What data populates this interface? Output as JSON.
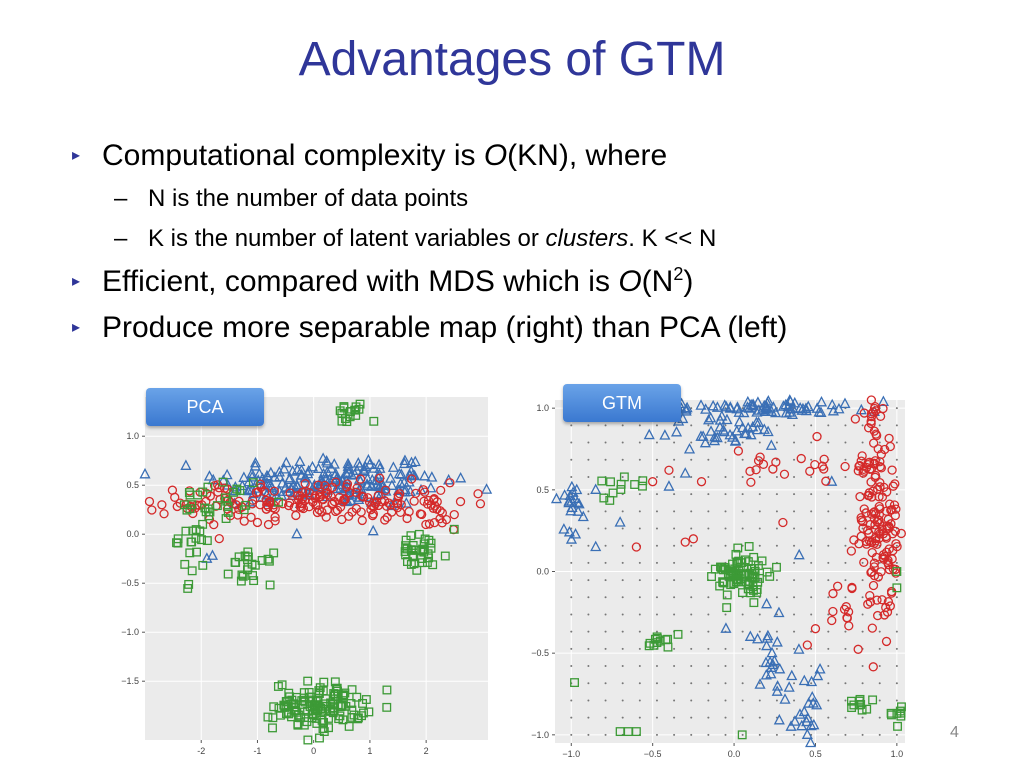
{
  "slide": {
    "title": "Advantages of GTM",
    "page_number": "4",
    "bullets": {
      "b1_pre": "Computational complexity is ",
      "b1_italic": "O",
      "b1_post": "(KN), where",
      "sub1": "N is the number of data points",
      "sub2_pre": "K is the number of latent variables or ",
      "sub2_italic": "clusters",
      "sub2_post": ". K << N",
      "b2_pre": "Efficient, compared with MDS which is ",
      "b2_italic": "O",
      "b2_mid": "(N",
      "b2_sup": "2",
      "b2_post": ")",
      "b3": "Produce more separable map (right) than PCA (left)",
      "arrow_glyph": "▸",
      "dash_glyph": "–"
    }
  },
  "chart_data": [
    {
      "type": "scatter",
      "label": "PCA",
      "xlim": [
        -3,
        3.1
      ],
      "ylim": [
        -2.1,
        1.4
      ],
      "x_ticks": [
        "-2",
        "-1",
        "0",
        "1",
        "2"
      ],
      "x_tick_values": [
        -2,
        -1,
        0,
        1,
        2
      ],
      "y_ticks": [
        "1.0",
        "0.5",
        "0.0",
        "−0.5",
        "−1.0",
        "−1.5"
      ],
      "y_tick_values": [
        1.0,
        0.5,
        0.0,
        -0.5,
        -1.0,
        -1.5
      ],
      "grid": true,
      "series": [
        {
          "marker": "triangle",
          "color": "#3a6fb5",
          "clusters": [
            {
              "cx": 0.3,
              "cy": 0.55,
              "sx": 1.0,
              "sy": 0.13,
              "n": 160
            },
            {
              "cx": 1.6,
              "cy": 0.45,
              "sx": 0.35,
              "sy": 0.1,
              "n": 20
            },
            {
              "cx": -0.8,
              "cy": 0.45,
              "sx": 0.4,
              "sy": 0.1,
              "n": 20
            }
          ],
          "points": [
            [
              -1.9,
              -0.25
            ],
            [
              -1.8,
              -0.22
            ],
            [
              0.8,
              0.35
            ],
            [
              2.4,
              0.55
            ],
            [
              -0.3,
              0.0
            ]
          ]
        },
        {
          "marker": "circle",
          "color": "#d42a2a",
          "clusters": [
            {
              "cx": 0.1,
              "cy": 0.33,
              "sx": 1.2,
              "sy": 0.1,
              "n": 170
            },
            {
              "cx": -2.0,
              "cy": 0.3,
              "sx": 0.35,
              "sy": 0.12,
              "n": 14
            },
            {
              "cx": 2.0,
              "cy": 0.2,
              "sx": 0.4,
              "sy": 0.1,
              "n": 14
            }
          ],
          "points": [
            [
              -2.7,
              0.3
            ],
            [
              2.5,
              0.2
            ],
            [
              -1.0,
              0.12
            ],
            [
              0.5,
              0.15
            ]
          ]
        },
        {
          "marker": "square",
          "color": "#3c9a36",
          "clusters": [
            {
              "cx": 0.65,
              "cy": 1.22,
              "sx": 0.15,
              "sy": 0.06,
              "n": 16
            },
            {
              "cx": -2.1,
              "cy": 0.0,
              "sx": 0.15,
              "sy": 0.22,
              "n": 28
            },
            {
              "cx": -1.1,
              "cy": -0.35,
              "sx": 0.18,
              "sy": 0.08,
              "n": 22
            },
            {
              "cx": 1.9,
              "cy": -0.2,
              "sx": 0.25,
              "sy": 0.1,
              "n": 34
            },
            {
              "cx": 0.1,
              "cy": -1.75,
              "sx": 0.4,
              "sy": 0.12,
              "n": 130
            },
            {
              "cx": -1.5,
              "cy": 0.35,
              "sx": 0.3,
              "sy": 0.12,
              "n": 18
            }
          ],
          "points": [
            [
              -2.3,
              0.3
            ],
            [
              -2.2,
              0.4
            ],
            [
              2.5,
              0.05
            ]
          ]
        }
      ]
    },
    {
      "type": "scatter",
      "label": "GTM",
      "xlim": [
        -1.1,
        1.05
      ],
      "ylim": [
        -1.05,
        1.05
      ],
      "x_ticks": [
        "−1.0",
        "−0.5",
        "0.0",
        "0.5",
        "1.0"
      ],
      "x_tick_values": [
        -1.0,
        -0.5,
        0.0,
        0.5,
        1.0
      ],
      "y_ticks": [
        "1.0",
        "0.5",
        "0.0",
        "−0.5",
        "−1.0"
      ],
      "y_tick_values": [
        1.0,
        0.5,
        0.0,
        -0.5,
        -1.0
      ],
      "grid": true,
      "latent_grid_points": "20x20 dotted latent grid over [-1,1]",
      "series": [
        {
          "marker": "triangle",
          "color": "#3a6fb5",
          "clusters": [
            {
              "cx": 0.15,
              "cy": 1.0,
              "sx": 0.35,
              "sy": 0.02,
              "n": 70
            },
            {
              "cx": -0.05,
              "cy": 0.85,
              "sx": 0.2,
              "sy": 0.05,
              "n": 40
            },
            {
              "cx": -1.0,
              "cy": 0.4,
              "sx": 0.04,
              "sy": 0.1,
              "n": 20
            },
            {
              "cx": 0.25,
              "cy": -0.55,
              "sx": 0.07,
              "sy": 0.15,
              "n": 22
            },
            {
              "cx": 0.45,
              "cy": -0.85,
              "sx": 0.04,
              "sy": 0.12,
              "n": 18
            }
          ],
          "points": [
            [
              -0.85,
              0.5
            ],
            [
              -0.3,
              0.6
            ],
            [
              -0.4,
              0.52
            ],
            [
              0.4,
              0.1
            ],
            [
              0.6,
              0.55
            ],
            [
              0.1,
              -0.4
            ],
            [
              -0.05,
              -0.35
            ],
            [
              0.2,
              -0.2
            ],
            [
              0.35,
              -0.95
            ],
            [
              0.45,
              -1.0
            ],
            [
              -0.85,
              0.15
            ],
            [
              -0.7,
              0.3
            ]
          ]
        },
        {
          "marker": "circle",
          "color": "#d42a2a",
          "clusters": [
            {
              "cx": 0.85,
              "cy": 0.4,
              "sx": 0.05,
              "sy": 0.3,
              "n": 110
            },
            {
              "cx": 0.95,
              "cy": 0.2,
              "sx": 0.03,
              "sy": 0.3,
              "n": 50
            },
            {
              "cx": 0.35,
              "cy": 0.65,
              "sx": 0.25,
              "sy": 0.05,
              "n": 20
            },
            {
              "cx": 0.72,
              "cy": -0.25,
              "sx": 0.05,
              "sy": 0.1,
              "n": 14
            }
          ],
          "points": [
            [
              -0.5,
              0.55
            ],
            [
              -0.4,
              0.62
            ],
            [
              -0.2,
              0.55
            ],
            [
              -0.6,
              0.15
            ],
            [
              -0.3,
              0.18
            ],
            [
              -0.25,
              0.2
            ],
            [
              0.5,
              -0.35
            ],
            [
              0.45,
              -0.45
            ],
            [
              0.6,
              -0.3
            ],
            [
              0.9,
              0.95
            ],
            [
              0.8,
              0.97
            ],
            [
              0.3,
              0.3
            ]
          ]
        },
        {
          "marker": "square",
          "color": "#3c9a36",
          "clusters": [
            {
              "cx": 0.05,
              "cy": -0.02,
              "sx": 0.08,
              "sy": 0.07,
              "n": 80
            },
            {
              "cx": -0.45,
              "cy": -0.43,
              "sx": 0.04,
              "sy": 0.03,
              "n": 12
            },
            {
              "cx": 0.78,
              "cy": -0.82,
              "sx": 0.03,
              "sy": 0.03,
              "n": 10
            },
            {
              "cx": 1.0,
              "cy": -0.88,
              "sx": 0.03,
              "sy": 0.03,
              "n": 8
            },
            {
              "cx": -0.65,
              "cy": 0.55,
              "sx": 0.08,
              "sy": 0.04,
              "n": 10
            }
          ],
          "points": [
            [
              -0.98,
              -0.68
            ],
            [
              -0.7,
              -0.98
            ],
            [
              -0.65,
              -0.98
            ],
            [
              -0.6,
              -0.98
            ],
            [
              1.0,
              -0.1
            ],
            [
              1.0,
              0.0
            ],
            [
              -0.8,
              0.45
            ],
            [
              0.05,
              -1.0
            ]
          ]
        }
      ]
    }
  ]
}
